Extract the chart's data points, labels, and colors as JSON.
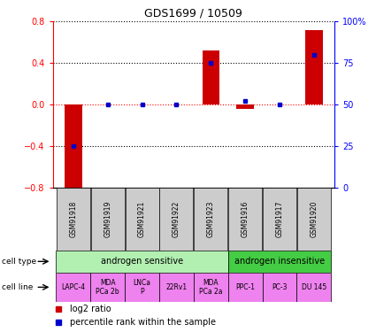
{
  "title": "GDS1699 / 10509",
  "samples": [
    "GSM91918",
    "GSM91919",
    "GSM91921",
    "GSM91922",
    "GSM91923",
    "GSM91916",
    "GSM91917",
    "GSM91920"
  ],
  "log2_ratio": [
    -0.85,
    0.0,
    0.0,
    0.0,
    0.52,
    -0.04,
    0.0,
    0.72
  ],
  "percentile_rank": [
    25,
    50,
    50,
    50,
    75,
    52,
    50,
    80
  ],
  "cell_type_groups": [
    {
      "label": "androgen sensitive",
      "start": 0,
      "end": 5,
      "color": "#b2f0b2"
    },
    {
      "label": "androgen insensitive",
      "start": 5,
      "end": 8,
      "color": "#44cc44"
    }
  ],
  "cell_line_groups": [
    {
      "label": "LAPC-4",
      "start": 0,
      "end": 1
    },
    {
      "label": "MDA\nPCa 2b",
      "start": 1,
      "end": 2
    },
    {
      "label": "LNCa\nP",
      "start": 2,
      "end": 3
    },
    {
      "label": "22Rv1",
      "start": 3,
      "end": 4
    },
    {
      "label": "MDA\nPCa 2a",
      "start": 4,
      "end": 5
    },
    {
      "label": "PPC-1",
      "start": 5,
      "end": 6
    },
    {
      "label": "PC-3",
      "start": 6,
      "end": 7
    },
    {
      "label": "DU 145",
      "start": 7,
      "end": 8
    }
  ],
  "cell_line_color": "#ee82ee",
  "sample_label_color": "#cccccc",
  "bar_color": "#cc0000",
  "dot_color": "#0000cc",
  "ylim_left": [
    -0.8,
    0.8
  ],
  "ylim_right": [
    0,
    100
  ],
  "yticks_left": [
    -0.8,
    -0.4,
    0.0,
    0.4,
    0.8
  ],
  "yticks_right": [
    0,
    25,
    50,
    75,
    100
  ],
  "ytick_labels_right": [
    "0",
    "25",
    "50",
    "75",
    "100%"
  ],
  "legend_items": [
    {
      "label": "log2 ratio",
      "color": "#cc0000"
    },
    {
      "label": "percentile rank within the sample",
      "color": "#0000cc"
    }
  ]
}
